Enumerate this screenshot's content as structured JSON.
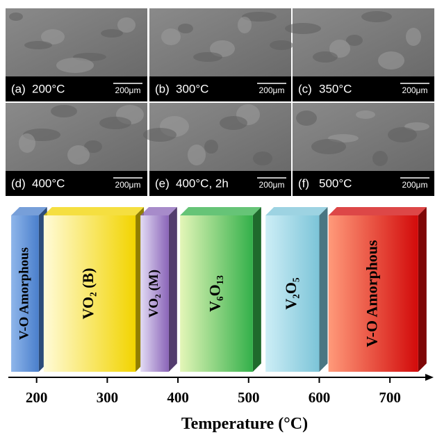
{
  "panels": [
    {
      "label": "(a)",
      "temp": "200°C",
      "scale": "200μm"
    },
    {
      "label": "(b)",
      "temp": "300°C",
      "scale": "200μm"
    },
    {
      "label": "(c)",
      "temp": "350°C",
      "scale": "200μm"
    },
    {
      "label": "(d)",
      "temp": "400°C",
      "scale": "200μm"
    },
    {
      "label": "(e)",
      "temp": "400°C, 2h",
      "scale": "200μm"
    },
    {
      "label": "(f)",
      "temp": "500°C",
      "scale": "200μm"
    }
  ],
  "phases": [
    {
      "label": "V-O Amorphous",
      "start": 164,
      "end": 203,
      "light": "#8fb6ea",
      "color": "#4a7fcc"
    },
    {
      "label": "VO₂ (B)",
      "start": 210,
      "end": 340,
      "light": "#fffbd8",
      "color": "#f2d400"
    },
    {
      "label": "VO₂ (M)",
      "start": 347,
      "end": 387,
      "light": "#e2dbf4",
      "color": "#8a64b8"
    },
    {
      "label": "V₆O₁₃",
      "start": 403,
      "end": 506,
      "light": "#e4f6b8",
      "color": "#33b04a"
    },
    {
      "label": "V₂O₅",
      "start": 524,
      "end": 600,
      "light": "#cdeef6",
      "color": "#7cc4d8"
    },
    {
      "label": "V-O  Amorphous",
      "start": 613,
      "end": 740,
      "light": "#ff9a7a",
      "color": "#d20a0a"
    }
  ],
  "axis": {
    "label": "Temperature  (°C)",
    "xlim": [
      160,
      750
    ],
    "xticks": [
      200,
      300,
      400,
      500,
      600,
      700
    ]
  }
}
